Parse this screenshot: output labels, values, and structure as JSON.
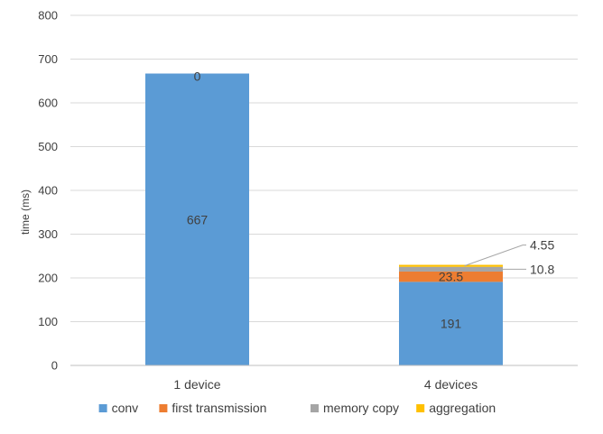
{
  "chart_data": {
    "type": "bar",
    "stacked": true,
    "title": "",
    "xlabel": "",
    "ylabel": "time (ms)",
    "ylim": [
      0,
      800
    ],
    "yticks": [
      0,
      100,
      200,
      300,
      400,
      500,
      600,
      700,
      800
    ],
    "grid": true,
    "legend_position": "bottom",
    "categories": [
      "1 device",
      "4 devices"
    ],
    "series": [
      {
        "name": "conv",
        "color": "#5B9BD5",
        "values": [
          667,
          191
        ]
      },
      {
        "name": "first transmission",
        "color": "#ED7D31",
        "values": [
          0,
          23.5
        ]
      },
      {
        "name": "memory copy",
        "color": "#A5A5A5",
        "values": [
          0,
          10.8
        ]
      },
      {
        "name": "aggregation",
        "color": "#FFC000",
        "values": [
          0,
          4.55
        ]
      }
    ],
    "data_labels": [
      {
        "category": "1 device",
        "series": "conv",
        "text": "667"
      },
      {
        "category": "1 device",
        "series": "first transmission",
        "text": "0"
      },
      {
        "category": "4 devices",
        "series": "conv",
        "text": "191"
      },
      {
        "category": "4 devices",
        "series": "first transmission",
        "text": "23.5"
      },
      {
        "category": "4 devices",
        "series": "memory copy",
        "text": "10.8"
      },
      {
        "category": "4 devices",
        "series": "aggregation",
        "text": "4.55"
      }
    ]
  }
}
